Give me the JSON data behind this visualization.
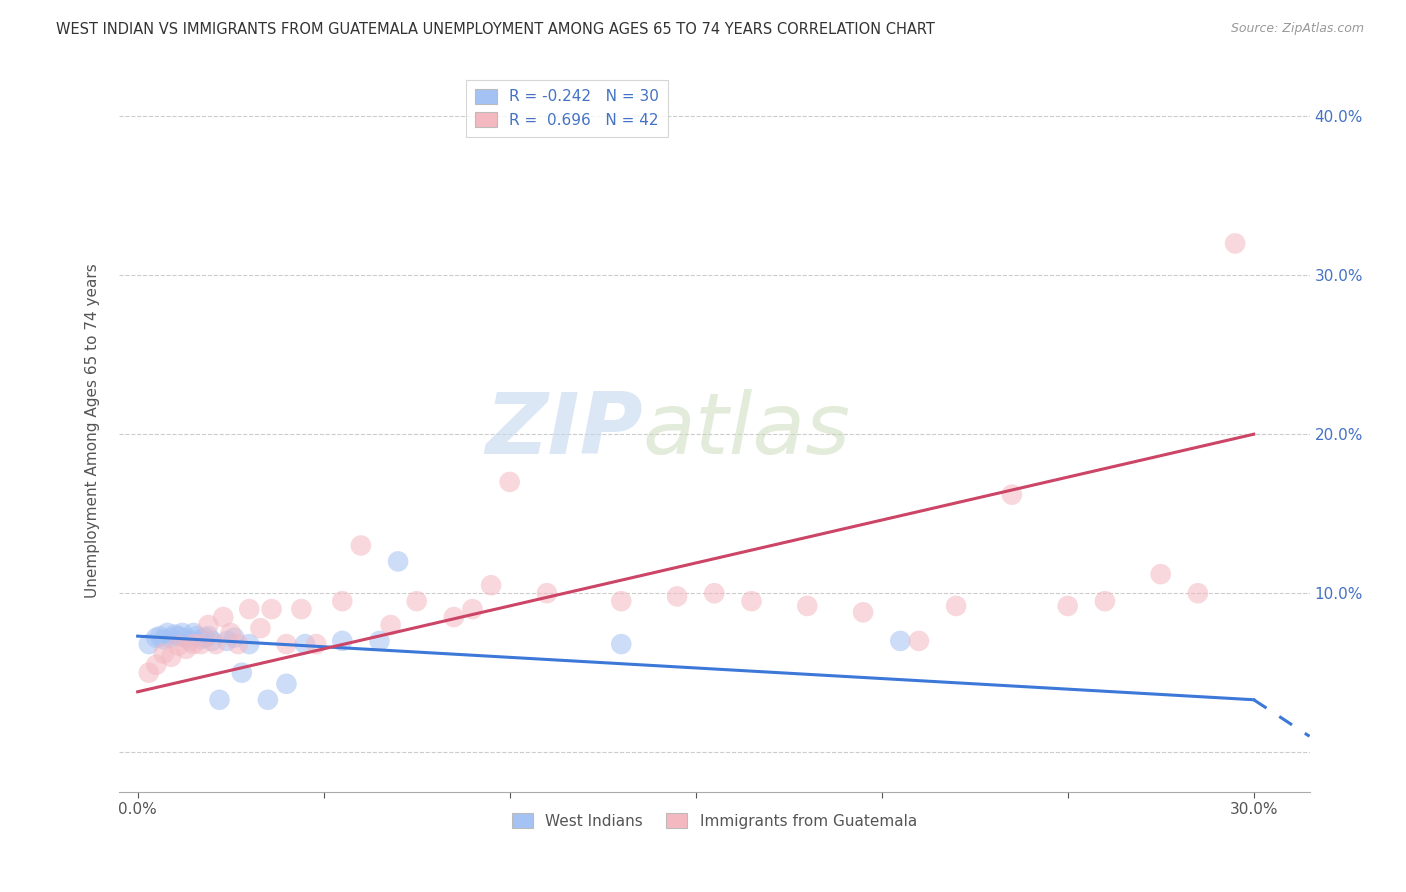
{
  "title": "WEST INDIAN VS IMMIGRANTS FROM GUATEMALA UNEMPLOYMENT AMONG AGES 65 TO 74 YEARS CORRELATION CHART",
  "source": "Source: ZipAtlas.com",
  "ylabel": "Unemployment Among Ages 65 to 74 years",
  "blue_color": "#a4c2f4",
  "pink_color": "#f4b8c1",
  "blue_line_color": "#3c78d8",
  "pink_line_color": "#cc4466",
  "background_color": "#ffffff",
  "watermark_zip": "ZIP",
  "watermark_atlas": "atlas",
  "xlim_min": -0.005,
  "xlim_max": 0.315,
  "ylim_min": -0.025,
  "ylim_max": 0.43,
  "blue_x": [
    0.003,
    0.005,
    0.006,
    0.007,
    0.008,
    0.009,
    0.01,
    0.011,
    0.012,
    0.013,
    0.014,
    0.015,
    0.016,
    0.017,
    0.018,
    0.019,
    0.02,
    0.022,
    0.024,
    0.026,
    0.028,
    0.03,
    0.035,
    0.04,
    0.045,
    0.055,
    0.065,
    0.07,
    0.13,
    0.205
  ],
  "blue_y": [
    0.068,
    0.072,
    0.073,
    0.071,
    0.075,
    0.072,
    0.074,
    0.073,
    0.075,
    0.072,
    0.07,
    0.075,
    0.073,
    0.071,
    0.072,
    0.073,
    0.07,
    0.033,
    0.07,
    0.072,
    0.05,
    0.068,
    0.033,
    0.043,
    0.068,
    0.07,
    0.07,
    0.12,
    0.068,
    0.07
  ],
  "pink_x": [
    0.003,
    0.005,
    0.007,
    0.009,
    0.011,
    0.013,
    0.015,
    0.017,
    0.019,
    0.021,
    0.023,
    0.025,
    0.027,
    0.03,
    0.033,
    0.036,
    0.04,
    0.044,
    0.048,
    0.055,
    0.06,
    0.068,
    0.075,
    0.085,
    0.09,
    0.095,
    0.1,
    0.11,
    0.13,
    0.145,
    0.155,
    0.165,
    0.18,
    0.195,
    0.21,
    0.22,
    0.235,
    0.25,
    0.26,
    0.275,
    0.285,
    0.295
  ],
  "pink_y": [
    0.05,
    0.055,
    0.062,
    0.06,
    0.067,
    0.065,
    0.068,
    0.068,
    0.08,
    0.068,
    0.085,
    0.075,
    0.068,
    0.09,
    0.078,
    0.09,
    0.068,
    0.09,
    0.068,
    0.095,
    0.13,
    0.08,
    0.095,
    0.085,
    0.09,
    0.105,
    0.17,
    0.1,
    0.095,
    0.098,
    0.1,
    0.095,
    0.092,
    0.088,
    0.07,
    0.092,
    0.162,
    0.092,
    0.095,
    0.112,
    0.1,
    0.32
  ],
  "blue_line_start_y": 0.073,
  "blue_line_end_y": 0.033,
  "blue_line_dash_end_y": 0.01,
  "pink_line_start_y": 0.038,
  "pink_line_end_y": 0.2,
  "legend1_label": "R = -0.242   N = 30",
  "legend2_label": "R =  0.696   N = 42",
  "bottom_legend1": "West Indians",
  "bottom_legend2": "Immigrants from Guatemala"
}
